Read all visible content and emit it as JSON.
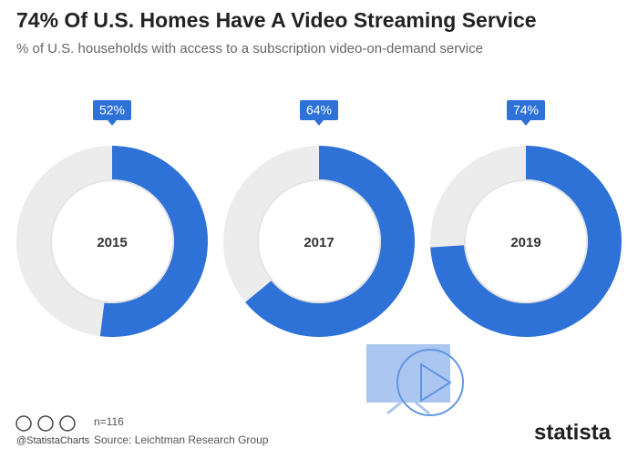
{
  "chart_data": {
    "type": "donut",
    "title": "74% Of U.S. Homes Have A Video Streaming Service",
    "subtitle": "% of U.S. households with access to a subscription video-on-demand service",
    "categories": [
      "2015",
      "2017",
      "2019"
    ],
    "values": [
      52,
      64,
      74
    ],
    "value_labels": [
      "52%",
      "64%",
      "74%"
    ],
    "color": "#2e72d8",
    "rest_color": "#ececec",
    "handle": "@StatistaCharts",
    "note": "n=116",
    "source": "Source: Leichtman Research Group",
    "brand": "statista"
  }
}
